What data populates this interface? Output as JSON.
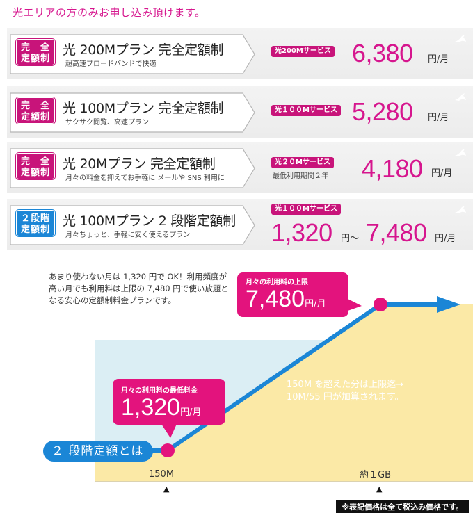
{
  "header": "光エリアの方のみお申し込み頂けます。",
  "plans": [
    {
      "badge_l1": "完　全",
      "badge_l2": "定額制",
      "badge_color": "#c8147a",
      "name": "光 200Mプラン 完全定額制",
      "sub": "超高速ブロードバンドで快適",
      "service": "光200Mサービス",
      "note": "",
      "price": "6,380",
      "unit": "円/月"
    },
    {
      "badge_l1": "完　全",
      "badge_l2": "定額制",
      "badge_color": "#c8147a",
      "name": "光 100Mプラン 完全定額制",
      "sub": "サクサク閲覧、高速プラン",
      "service": "光１００Mサービス",
      "note": "",
      "price": "5,280",
      "unit": "円/月"
    },
    {
      "badge_l1": "完　全",
      "badge_l2": "定額制",
      "badge_color": "#c8147a",
      "name": "光 20Mプラン 完全定額制",
      "sub": "月々の料金を抑えてお手軽に メールや SNS 利用に",
      "service": "光２０Mサービス",
      "note": "最低利用期間２年",
      "price": "4,180",
      "unit": "円/月"
    },
    {
      "badge_l1": "２段階",
      "badge_l2": "定額制",
      "badge_color": "#1b86d6",
      "name": "光 100Mプラン 2 段階定額制",
      "sub": "月々ちょっと、手軽に安く使えるプラン",
      "service": "光１００Mサービス",
      "note": "",
      "price_min": "1,320",
      "price_sep": "円～",
      "price_max": "7,480",
      "unit": "円/月"
    }
  ],
  "description": "あまり使わない月は 1,320 円で OK！利用頻度が高い月でも利用料は上限の 7,480 円で使い放題となる安心の定額制料金プランです。",
  "graph": {
    "max_label": "月々の利用料の上限",
    "max_value": "7,480",
    "max_unit": "円/月",
    "min_label": "月々の利用料の最低料金",
    "min_value": "1,320",
    "min_unit": "円/月",
    "note_line1": "150M を超えた分は上限迄→",
    "note_line2": "10M/55 円が加算されます。",
    "pill": "２ 段階定額とは",
    "x_label_1": "150M",
    "x_label_2": "約１GB",
    "marker": "▲",
    "colors": {
      "pink": "#e3137d",
      "blue": "#1b86d6",
      "sky": "#dbeef4",
      "cream": "#fbe9a6"
    }
  },
  "tax_note": "※表記価格は全て税込み価格です。"
}
